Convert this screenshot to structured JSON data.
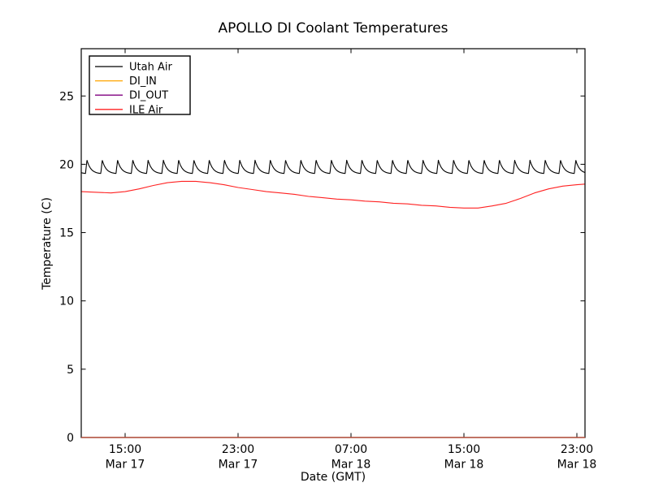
{
  "chart_data": {
    "type": "line",
    "title": "APOLLO DI Coolant Temperatures",
    "xlabel": "Date (GMT)",
    "ylabel": "Temperature (C)",
    "x_axis": {
      "unit": "hours since Mar 17 12:00 GMT",
      "range_hours": [
        -0.11,
        35.58
      ],
      "ticks": [
        {
          "hour": 3,
          "time": "15:00",
          "date": "Mar 17"
        },
        {
          "hour": 11,
          "time": "23:00",
          "date": "Mar 17"
        },
        {
          "hour": 19,
          "time": "07:00",
          "date": "Mar 18"
        },
        {
          "hour": 27,
          "time": "15:00",
          "date": "Mar 18"
        },
        {
          "hour": 35,
          "time": "23:00",
          "date": "Mar 18"
        }
      ]
    },
    "y_axis": {
      "lim": [
        0,
        28.5
      ],
      "ticks": [
        0,
        5,
        10,
        15,
        20,
        25
      ]
    },
    "legend": {
      "position": "upper-left"
    },
    "grid": false,
    "series": [
      {
        "name": "Utah Air",
        "color": "#000000",
        "shape": "sawtooth",
        "sawtooth": {
          "period_hours": 1.082,
          "first_peak_hour": 0.3,
          "trough_c": 19.3,
          "peak_c": 20.3,
          "rise_fraction": 0.1
        }
      },
      {
        "name": "DI_IN",
        "color": "#ffa500",
        "shape": "constant",
        "value_c": 0.0
      },
      {
        "name": "DI_OUT",
        "color": "#800080",
        "shape": "constant",
        "value_c": 0.0
      },
      {
        "name": "ILE Air",
        "color": "#ff2222",
        "shape": "keypoints",
        "points_hour_c": [
          [
            -0.11,
            18.0
          ],
          [
            1,
            17.95
          ],
          [
            2,
            17.9
          ],
          [
            3,
            18.0
          ],
          [
            4,
            18.2
          ],
          [
            5,
            18.45
          ],
          [
            6,
            18.65
          ],
          [
            7,
            18.75
          ],
          [
            8,
            18.75
          ],
          [
            9,
            18.65
          ],
          [
            10,
            18.5
          ],
          [
            11,
            18.3
          ],
          [
            12,
            18.15
          ],
          [
            13,
            18.0
          ],
          [
            14,
            17.9
          ],
          [
            15,
            17.8
          ],
          [
            16,
            17.65
          ],
          [
            17,
            17.55
          ],
          [
            18,
            17.45
          ],
          [
            19,
            17.4
          ],
          [
            20,
            17.3
          ],
          [
            21,
            17.25
          ],
          [
            22,
            17.15
          ],
          [
            23,
            17.1
          ],
          [
            24,
            17.0
          ],
          [
            25,
            16.95
          ],
          [
            26,
            16.85
          ],
          [
            27,
            16.8
          ],
          [
            28,
            16.8
          ],
          [
            29,
            16.95
          ],
          [
            30,
            17.15
          ],
          [
            31,
            17.5
          ],
          [
            32,
            17.9
          ],
          [
            33,
            18.2
          ],
          [
            34,
            18.4
          ],
          [
            35,
            18.5
          ],
          [
            35.58,
            18.55
          ]
        ]
      }
    ]
  }
}
